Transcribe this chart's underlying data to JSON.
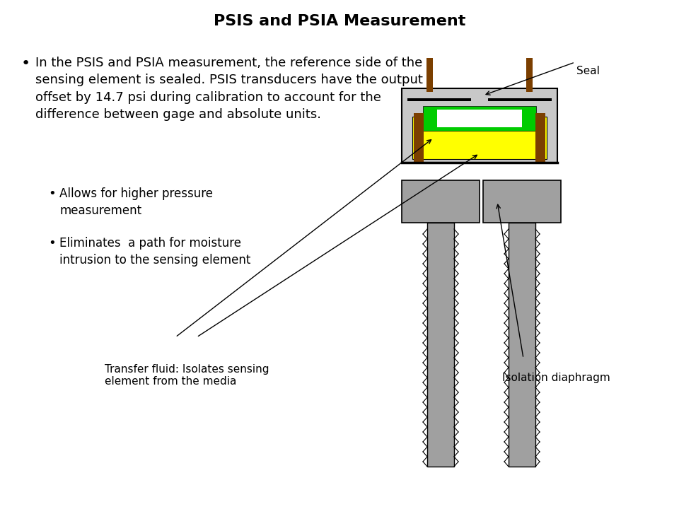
{
  "title": "PSIS and PSIA Measurement",
  "title_fontsize": 16,
  "title_fontweight": "bold",
  "background_color": "#ffffff",
  "text_color": "#000000",
  "main_bullet": "In the PSIS and PSIA measurement, the reference side of the\nsensing element is sealed. PSIS transducers have the output\noffset by 14.7 psi during calibration to account for the\ndifference between gage and absolute units.",
  "sub_bullets": [
    "Allows for higher pressure\nmeasurement",
    "Eliminates  a path for moisture\nintrusion to the sensing element"
  ],
  "annotation_seal": "Seal",
  "annotation_transfer": "Transfer fluid: Isolates sensing\nelement from the media",
  "annotation_isolation": "Isolation diaphragm",
  "gray_color": "#999999",
  "dark_brown": "#7B3F00",
  "yellow_color": "#FFFF00",
  "green_color": "#00CC00",
  "light_gray": "#C8C8C8",
  "dark_gray": "#888888",
  "mid_gray": "#A0A0A0"
}
